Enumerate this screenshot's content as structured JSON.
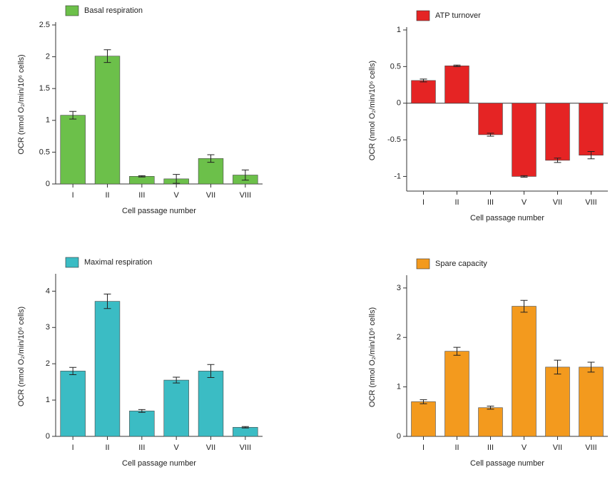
{
  "chart_data": [
    {
      "type": "bar",
      "ylabel": "OCR (nmol O₂/min/10⁶ cells)",
      "xlabel": "Cell passage number",
      "categories": [
        "I",
        "II",
        "III",
        "V",
        "VII",
        "VIII"
      ],
      "series": [
        {
          "name": "Basal respiration",
          "color": "#6cc04a",
          "values": [
            1.08,
            2.01,
            0.12,
            0.08,
            0.4,
            0.14
          ],
          "errors": [
            0.06,
            0.1,
            0.01,
            0.07,
            0.06,
            0.08
          ]
        }
      ],
      "ylim": [
        0,
        2.5
      ],
      "yticks": [
        0,
        0.5,
        1,
        1.5,
        2,
        2.5
      ]
    },
    {
      "type": "bar",
      "ylabel": "OCR (nmol O₂/min/10⁶ cells)",
      "xlabel": "Cell passage number",
      "categories": [
        "I",
        "II",
        "III",
        "V",
        "VII",
        "VIII"
      ],
      "series": [
        {
          "name": "ATP turnover",
          "color": "#e52424",
          "values": [
            0.31,
            0.51,
            -0.43,
            -1.0,
            -0.78,
            -0.71
          ],
          "errors": [
            0.02,
            0.01,
            0.02,
            0.01,
            0.03,
            0.05
          ]
        }
      ],
      "ylim": [
        -1.2,
        1
      ],
      "yticks": [
        -1,
        -0.5,
        0,
        0.5,
        1
      ]
    },
    {
      "type": "bar",
      "ylabel": "OCR (nmol O₂/min/10⁶ cells)",
      "xlabel": "Cell passage number",
      "categories": [
        "I",
        "II",
        "III",
        "V",
        "VII",
        "VIII"
      ],
      "series": [
        {
          "name": "Maximal respiration",
          "color": "#3bbcc4",
          "values": [
            1.8,
            3.72,
            0.7,
            1.55,
            1.8,
            0.25
          ],
          "errors": [
            0.1,
            0.2,
            0.04,
            0.08,
            0.18,
            0.02
          ]
        }
      ],
      "ylim": [
        0,
        4.4
      ],
      "yticks": [
        0,
        1,
        2,
        3,
        4
      ]
    },
    {
      "type": "bar",
      "ylabel": "OCR (nmol O₂/min/10⁶ cells)",
      "xlabel": "Cell passage number",
      "categories": [
        "I",
        "II",
        "III",
        "V",
        "VII",
        "VIII"
      ],
      "series": [
        {
          "name": "Spare capacity",
          "color": "#f39a1e",
          "values": [
            0.7,
            1.72,
            0.58,
            2.63,
            1.4,
            1.4
          ],
          "errors": [
            0.04,
            0.08,
            0.03,
            0.12,
            0.14,
            0.1
          ]
        }
      ],
      "ylim": [
        0,
        3.2
      ],
      "yticks": [
        0,
        1,
        2,
        3
      ]
    }
  ]
}
